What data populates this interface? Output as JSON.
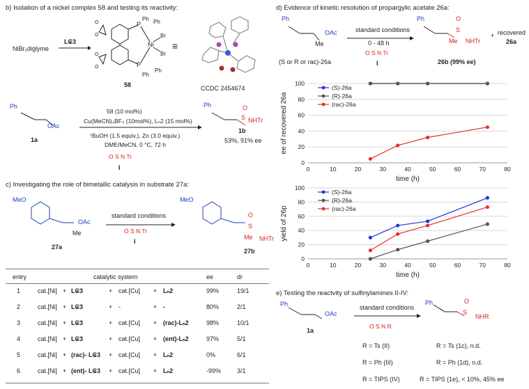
{
  "panel_b": {
    "header": "b) Isolation of a nickel complex 58 and testing its reactivity:",
    "reagent_start": "NiBr₂diglyme",
    "arrow_label": "L₢3",
    "complex_label": "58",
    "ccdc_label": "CCDC 2454674",
    "conditions": [
      "58 (10 mol%)",
      "Cu(MeCN)₄BF₄ (10mol%), Lₙ2 (15 mol%)",
      "ᵗBuOH (1.5 equiv.), Zn (3.0 equiv.)",
      "DME/MeCN, 0 °C, 72 h"
    ],
    "substrate_label": "1a",
    "reagent_I": "I",
    "product_label": "1b",
    "product_yield": "53%, 91% ee",
    "chem": {
      "ph": "Ph",
      "oac": "OAc",
      "nhtr": "NHTr",
      "p": "P",
      "ni": "Ni",
      "br": "Br",
      "s": "S",
      "o": "O",
      "n": "N",
      "tr": "Tr"
    }
  },
  "panel_c": {
    "header": "c) Investigating the role of bimetallic catalysis in substrate 27a:",
    "arrow_label": "standard conditions",
    "reagent_I": "I",
    "substrate_label": "27a",
    "product_label": "27b",
    "meo": "MeO",
    "oac": "OAc",
    "me": "Me",
    "nhtr": "NHTr",
    "table": {
      "headers": [
        "entry",
        "catalytic system",
        "ee",
        "dr"
      ],
      "rows": [
        {
          "entry": "1",
          "ni": "cat.[Ni]",
          "ligand1": "L₢3",
          "cu": "cat.[Cu]",
          "ligand2": "Lₙ2",
          "ee": "99%",
          "dr": "19/1"
        },
        {
          "entry": "2",
          "ni": "cat.[Ni]",
          "ligand1": "L₢3",
          "cu": "-",
          "ligand2": "-",
          "ee": "80%",
          "dr": "2/1"
        },
        {
          "entry": "3",
          "ni": "cat.[Ni]",
          "ligand1": "L₢3",
          "cu": "cat.[Cu]",
          "ligand2": "(rac)-Lₙ2",
          "ee": "98%",
          "dr": "10/1"
        },
        {
          "entry": "4",
          "ni": "cat.[Ni]",
          "ligand1": "L₢3",
          "cu": "cat.[Cu]",
          "ligand2": "(ent)-Lₙ2",
          "ee": "97%",
          "dr": "5/1"
        },
        {
          "entry": "5",
          "ni": "cat.[Ni]",
          "ligand1": "(rac)- L₢3",
          "cu": "cat.[Cu]",
          "ligand2": "Lₙ2",
          "ee": "0%",
          "dr": "6/1"
        },
        {
          "entry": "6",
          "ni": "cat.[Ni]",
          "ligand1": "(ent)- L₢3",
          "cu": "cat.[Cu]",
          "ligand2": "Lₙ2",
          "ee": "-99%",
          "dr": "3/1"
        }
      ]
    }
  },
  "panel_d": {
    "header": "d) Evidence of kinetic resolution of propargylic acetate 26a:",
    "arrow_label": "standard conditions",
    "time_label": "0 - 48 h",
    "reagent_I": "I",
    "substrate_label": "(S or R or rac)-26a",
    "product_label": "26b (99% ee)",
    "recovered_label": "recovered",
    "recovered_compound": "26a",
    "plus": "+",
    "oac": "OAc",
    "me": "Me",
    "nhtr": "NHTr",
    "ph": "Ph"
  },
  "panel_e": {
    "header": "e) Testing the reactvity of sulfinylamines II-IV:",
    "arrow_label": "standard conditions",
    "substrate_label": "1a",
    "oac": "OAc",
    "ph": "Ph",
    "nhr": "NHR",
    "r": "R",
    "reagents": [
      "R = Ts (II)",
      "R = Ph (III)",
      "R = TIPS (IV)"
    ],
    "results": [
      "R = Ts (1c), n.d.",
      "R = Ph (1d), n.d.",
      "R = TIPS (1e), < 10%, 45% ee"
    ]
  },
  "chart_data": [
    {
      "type": "line",
      "title": "",
      "xlabel": "time (h)",
      "ylabel": "ee of recovered 26a",
      "xlim": [
        0,
        80
      ],
      "ylim": [
        0,
        100
      ],
      "xticks": [
        0,
        10,
        20,
        30,
        40,
        50,
        60,
        70,
        80
      ],
      "yticks": [
        0,
        20,
        40,
        60,
        80,
        100
      ],
      "legend": "top-left",
      "x": [
        25,
        36,
        48,
        72
      ],
      "series": [
        {
          "name": "(S)-26a",
          "color": "#2233dd",
          "values": [
            100,
            100,
            100,
            100
          ]
        },
        {
          "name": "(R)-26a",
          "color": "#555555",
          "values": [
            100,
            100,
            100,
            100
          ]
        },
        {
          "name": "(rac)-26a",
          "color": "#e03030",
          "values": [
            5,
            22,
            32,
            45
          ]
        }
      ]
    },
    {
      "type": "line",
      "title": "",
      "xlabel": "time (h)",
      "ylabel": "yield of 26p",
      "xlim": [
        0,
        80
      ],
      "ylim": [
        0,
        100
      ],
      "xticks": [
        0,
        10,
        20,
        30,
        40,
        50,
        60,
        70,
        80
      ],
      "yticks": [
        0,
        20,
        40,
        60,
        80,
        100
      ],
      "legend": "top-left",
      "x": [
        25,
        36,
        48,
        72
      ],
      "series": [
        {
          "name": "(S)-26a",
          "color": "#2233dd",
          "values": [
            30,
            47,
            53,
            86
          ]
        },
        {
          "name": "(R)-26a",
          "color": "#555555",
          "values": [
            0,
            13,
            25,
            49
          ]
        },
        {
          "name": "(rac)-26a",
          "color": "#e03030",
          "values": [
            12,
            35,
            47,
            73
          ]
        }
      ]
    }
  ]
}
